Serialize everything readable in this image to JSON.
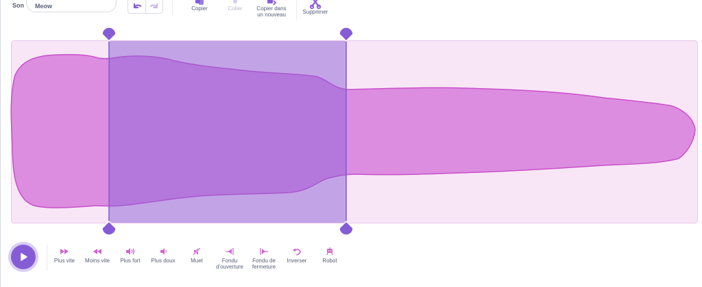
{
  "toolbar": {
    "sound_label": "Son",
    "sound_name": "Meow",
    "undo_icon": "undo-icon",
    "redo_icon": "redo-icon",
    "copy_label": "Copier",
    "paste_label": "Coller",
    "copy_new_label_line1": "Copier dans",
    "copy_new_label_line2": "un nouveau",
    "delete_label": "Supprimer"
  },
  "editor": {
    "selection": {
      "start": 0.142,
      "end": 0.488
    },
    "colors": {
      "wave_fill": "#dc8de0",
      "wave_stroke": "#c94fc9",
      "background": "#f8e6f7",
      "selection_fill": "#8c62d6",
      "handle": "#855cd6"
    }
  },
  "effects": [
    {
      "label": "Plus vite",
      "icon": "faster-icon"
    },
    {
      "label": "Moins vite",
      "icon": "slower-icon"
    },
    {
      "label": "Plus fort",
      "icon": "louder-icon"
    },
    {
      "label": "Plus doux",
      "icon": "softer-icon"
    },
    {
      "label": "Muet",
      "icon": "mute-icon"
    },
    {
      "label_line1": "Fondu",
      "label_line2": "d'ouverture",
      "icon": "fade-in-icon"
    },
    {
      "label_line1": "Fondu de",
      "label_line2": "fermeture",
      "icon": "fade-out-icon"
    },
    {
      "label": "Inverser",
      "icon": "reverse-icon"
    },
    {
      "label": "Robot",
      "icon": "robot-icon"
    }
  ]
}
